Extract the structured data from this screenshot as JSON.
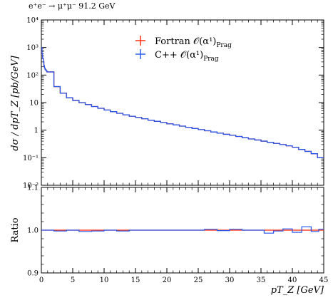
{
  "process_label": "e⁺e⁻ → μ⁺μ⁻ 91.2 GeV",
  "colors": {
    "fortran": "#ff2200",
    "cpp": "#2255ee"
  },
  "chart_data": [
    {
      "type": "line",
      "panel": "main",
      "ylabel": "dσ / dpT_Z [pb/GeV]",
      "xlim": [
        0,
        45
      ],
      "ylim": [
        0.01,
        10000
      ],
      "yscale": "log",
      "yticks": [
        "10⁴",
        "10³",
        "10²",
        "10",
        "1",
        "10⁻¹",
        "10⁻²"
      ],
      "ytick_values": [
        10000,
        1000,
        100,
        10,
        1,
        0.1,
        0.01
      ],
      "legend": "top-center",
      "x_edges": [
        0,
        0.1,
        0.2,
        0.3,
        0.4,
        0.5,
        0.6,
        0.7,
        0.8,
        0.9,
        1,
        2,
        3,
        4,
        5,
        6,
        7,
        8,
        9,
        10,
        11,
        12,
        13,
        14,
        15,
        16,
        17,
        18,
        19,
        20,
        21,
        22,
        23,
        24,
        25,
        26,
        27,
        28,
        29,
        30,
        31,
        32,
        33,
        34,
        35,
        36,
        37,
        38,
        39,
        40,
        41,
        42,
        43,
        44,
        45
      ],
      "series": [
        {
          "name": "Fortran 𝒪(α¹)",
          "name_sub": "Prag",
          "values": [
            1000,
            600,
            400,
            300,
            220,
            180,
            160,
            150,
            140,
            130,
            130,
            38,
            22,
            15,
            12,
            10,
            8.5,
            7.2,
            6.2,
            5.4,
            4.7,
            4.1,
            3.6,
            3.2,
            2.9,
            2.6,
            2.3,
            2.1,
            1.9,
            1.7,
            1.55,
            1.4,
            1.27,
            1.15,
            1.05,
            0.95,
            0.86,
            0.78,
            0.71,
            0.65,
            0.59,
            0.53,
            0.48,
            0.44,
            0.4,
            0.36,
            0.33,
            0.3,
            0.27,
            0.24,
            0.2,
            0.17,
            0.14,
            0.1
          ]
        },
        {
          "name": "C++ 𝒪(α¹)",
          "name_sub": "Prag",
          "values": [
            1000,
            600,
            400,
            300,
            220,
            180,
            160,
            150,
            140,
            130,
            130,
            38,
            22,
            15,
            12,
            10,
            8.5,
            7.2,
            6.2,
            5.4,
            4.7,
            4.1,
            3.6,
            3.2,
            2.9,
            2.6,
            2.3,
            2.1,
            1.9,
            1.7,
            1.55,
            1.4,
            1.27,
            1.15,
            1.05,
            0.95,
            0.86,
            0.78,
            0.71,
            0.65,
            0.59,
            0.53,
            0.48,
            0.44,
            0.4,
            0.36,
            0.33,
            0.3,
            0.27,
            0.24,
            0.2,
            0.17,
            0.14,
            0.1
          ]
        }
      ]
    },
    {
      "type": "line",
      "panel": "ratio",
      "ylabel": "Ratio",
      "xlabel": "pT_Z [GeV]",
      "xlim": [
        0,
        45
      ],
      "ylim": [
        0.9,
        1.1
      ],
      "yticks": [
        "1.1",
        "1.0",
        "0.9"
      ],
      "ytick_values": [
        1.1,
        1.0,
        0.9
      ],
      "xticks": [
        "0",
        "5",
        "10",
        "15",
        "20",
        "25",
        "30",
        "35",
        "40",
        "45"
      ],
      "xtick_values": [
        0,
        5,
        10,
        15,
        20,
        25,
        30,
        35,
        40,
        45
      ],
      "x_edges": [
        0,
        2,
        4,
        6,
        8,
        10,
        12,
        14,
        16,
        18,
        20,
        22,
        24,
        26,
        28,
        30,
        32,
        34,
        35.5,
        37,
        38.5,
        40,
        41.5,
        43,
        44.2,
        45
      ],
      "series": [
        {
          "name": "Fortran 𝒪(α¹)",
          "values": [
            1.0,
            1.0,
            1.0,
            1.0,
            1.0,
            1.0,
            1.0,
            1.0,
            1.0,
            1.0,
            1.0,
            1.0,
            1.0,
            1.0,
            1.0,
            1.0,
            1.0,
            1.0,
            1.0,
            1.0,
            1.0,
            1.0,
            1.0,
            1.0,
            1.0
          ]
        },
        {
          "name": "C++ 𝒪(α¹)",
          "values": [
            1.0,
            0.998,
            1.0,
            0.997,
            0.998,
            1.0,
            0.998,
            1.0,
            1.0,
            1.0,
            1.0,
            1.0,
            1.0,
            1.002,
            0.999,
            1.002,
            1.0,
            1.0,
            0.993,
            0.998,
            1.003,
            0.995,
            1.008,
            0.997,
            1.002
          ]
        }
      ]
    }
  ]
}
